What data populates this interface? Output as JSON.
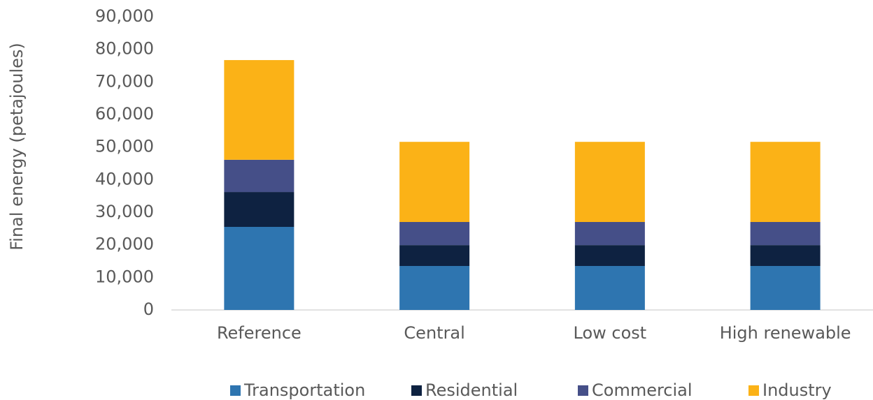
{
  "chart_data": {
    "type": "stacked_bar",
    "y_axis_label": "Final energy (petajoules)",
    "categories": [
      "Reference",
      "Central",
      "Low cost",
      "High renewable"
    ],
    "series": [
      {
        "name": "Transportation",
        "color": "#2e75b0",
        "values": [
          25500,
          13500,
          13500,
          13500
        ]
      },
      {
        "name": "Residential",
        "color": "#0e2241",
        "values": [
          10700,
          6400,
          6400,
          6400
        ]
      },
      {
        "name": "Commercial",
        "color": "#454f88",
        "values": [
          9900,
          7100,
          7100,
          7100
        ]
      },
      {
        "name": "Industry",
        "color": "#fbb217",
        "values": [
          30600,
          24600,
          24600,
          24600
        ]
      }
    ],
    "ylim": [
      0,
      90000
    ],
    "yticks": [
      0,
      {
        "value": 10000,
        "label": "10,000"
      },
      {
        "value": 20000,
        "label": "20,000"
      },
      {
        "value": 30000,
        "label": "30,000"
      },
      {
        "value": 40000,
        "label": "40,000"
      },
      {
        "value": 50000,
        "label": "50,000"
      },
      {
        "value": 60000,
        "label": "60,000"
      },
      {
        "value": 70000,
        "label": "70,000"
      },
      {
        "value": 80000,
        "label": "80,000"
      },
      {
        "value": 90000,
        "label": "90,000"
      }
    ],
    "grid": false,
    "legend": "bottom"
  }
}
